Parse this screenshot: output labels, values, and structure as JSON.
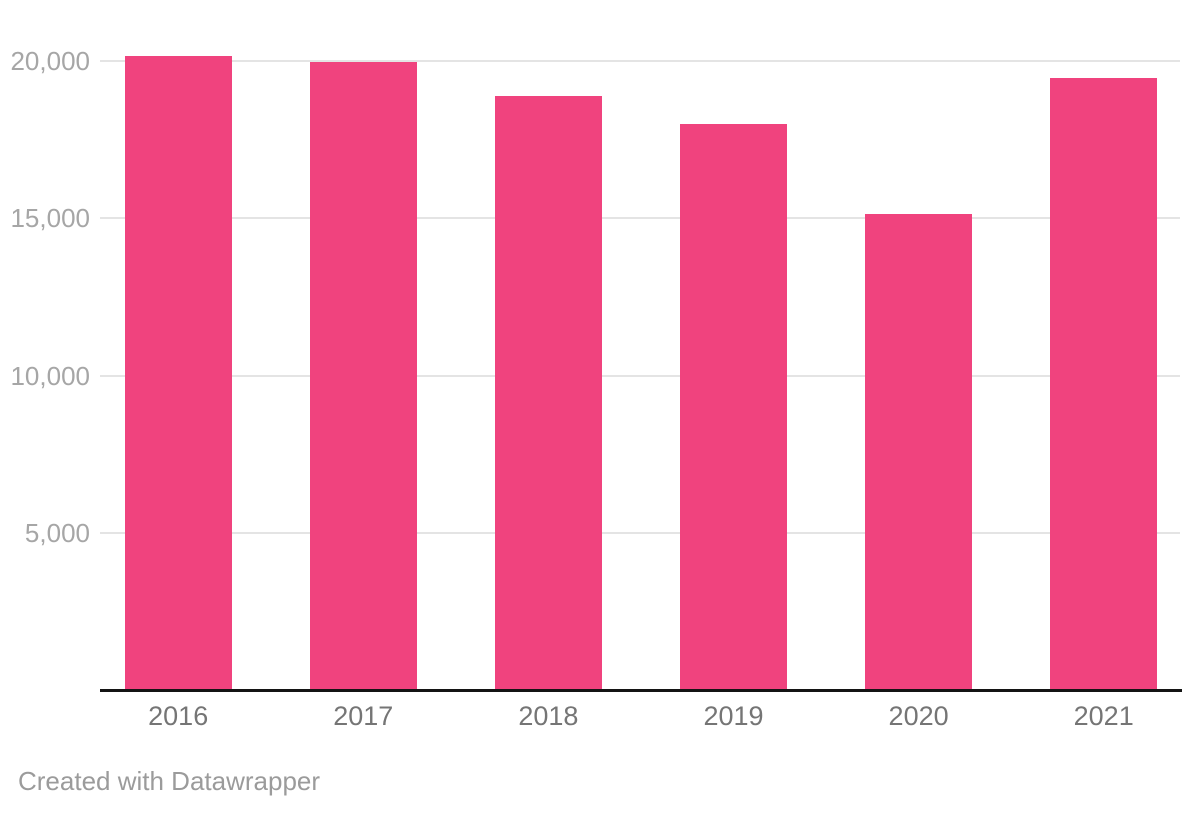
{
  "chart_data": {
    "type": "bar",
    "title": "",
    "xlabel": "",
    "ylabel": "",
    "categories": [
      "2016",
      "2017",
      "2018",
      "2019",
      "2020",
      "2021"
    ],
    "values": [
      20150,
      19950,
      18900,
      18000,
      15150,
      19450
    ],
    "ylim": [
      0,
      20500
    ],
    "yticks": [
      {
        "value": 5000,
        "label": "5,000"
      },
      {
        "value": 10000,
        "label": "10,000"
      },
      {
        "value": 15000,
        "label": "15,000"
      },
      {
        "value": 20000,
        "label": "20,000"
      }
    ],
    "grid": true,
    "legend_position": "none",
    "bar_color": "#f0437e"
  },
  "colors": {
    "background": "#ffffff",
    "bar": "#f0437e",
    "gridline": "#e4e4e4",
    "axis_line": "#141414",
    "y_tick_label": "#a6a6a6",
    "x_tick_label": "#757575",
    "attribution": "#9b9b9b"
  },
  "footer": {
    "attribution": "Created with Datawrapper"
  }
}
